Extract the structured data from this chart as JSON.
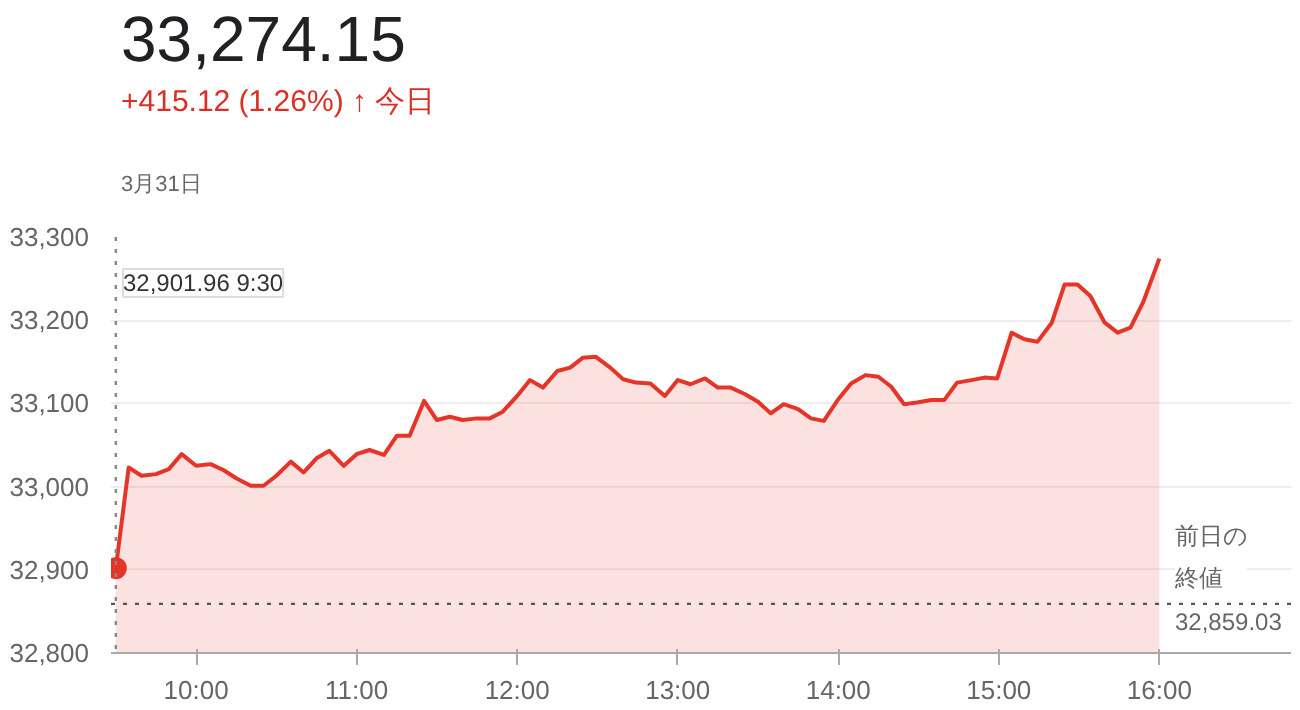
{
  "chart_data": {
    "type": "area",
    "title": "33,274.15",
    "subtitle": "+415.12 (1.26%) ↑ 今日",
    "annotations": [
      "3月31日",
      "32,901.96 9:30",
      "32,859.03"
    ],
    "x": [
      9.5,
      9.58,
      9.66,
      9.75,
      9.83,
      9.91,
      10.0,
      10.09,
      10.17,
      10.25,
      10.34,
      10.42,
      10.5,
      10.59,
      10.67,
      10.75,
      10.83,
      10.92,
      11.0,
      11.08,
      11.17,
      11.25,
      11.33,
      11.42,
      11.5,
      11.58,
      11.66,
      11.75,
      11.83,
      11.91,
      12.0,
      12.08,
      12.16,
      12.25,
      12.33,
      12.41,
      12.49,
      12.58,
      12.66,
      12.74,
      12.83,
      12.92,
      13.0,
      13.08,
      13.17,
      13.25,
      13.33,
      13.42,
      13.5,
      13.58,
      13.66,
      13.75,
      13.83,
      13.91,
      14.0,
      14.08,
      14.17,
      14.25,
      14.33,
      14.41,
      14.49,
      14.58,
      14.66,
      14.74,
      14.83,
      14.91,
      14.99,
      15.08,
      15.16,
      15.24,
      15.33,
      15.41,
      15.49,
      15.57,
      15.66,
      15.74,
      15.82,
      15.9,
      16.0
    ],
    "series": [
      {
        "color": "#e53528",
        "values": [
          32902,
          33023,
          33013,
          33015,
          33021,
          33039,
          33025,
          33027,
          33020,
          33010,
          33001,
          33001,
          33013,
          33030,
          33017,
          33034,
          33043,
          33025,
          33039,
          33044,
          33038,
          33061,
          33061,
          33103,
          33080,
          33084,
          33080,
          33082,
          33082,
          33090,
          33109,
          33128,
          33119,
          33139,
          33143,
          33155,
          33156,
          33143,
          33129,
          33125,
          33124,
          33109,
          33128,
          33123,
          33130,
          33119,
          33119,
          33111,
          33102,
          33088,
          33099,
          33093,
          33082,
          33079,
          33105,
          33124,
          33134,
          33132,
          33120,
          33099,
          33101,
          33104,
          33104,
          33125,
          33128,
          33131,
          33130,
          33185,
          33177,
          33174,
          33197,
          33243,
          33243,
          33229,
          33197,
          33185,
          33191,
          33222,
          33274
        ]
      }
    ],
    "xlim": [
      9.47,
      16.82
    ],
    "ylim": [
      32800,
      33300
    ],
    "xticks": [
      {
        "value": 10,
        "label": "10:00"
      },
      {
        "value": 11,
        "label": "11:00"
      },
      {
        "value": 12,
        "label": "12:00"
      },
      {
        "value": 13,
        "label": "13:00"
      },
      {
        "value": 14,
        "label": "14:00"
      },
      {
        "value": 15,
        "label": "15:00"
      },
      {
        "value": 16,
        "label": "16:00"
      }
    ],
    "yticks": [
      {
        "value": 32800,
        "label": "32,800"
      },
      {
        "value": 32900,
        "label": "32,900"
      },
      {
        "value": 33000,
        "label": "33,000"
      },
      {
        "value": 33100,
        "label": "33,100"
      },
      {
        "value": 33200,
        "label": "33,200"
      },
      {
        "value": 33300,
        "label": "33,300"
      }
    ],
    "ref_lines": [
      {
        "axis": "y",
        "value": 32859.03,
        "label": "前日の終値",
        "color": "#555555",
        "line_style": "dotted"
      },
      {
        "axis": "x",
        "value": 9.5,
        "label": null,
        "color": "#888888",
        "line_style": "dotted"
      }
    ],
    "grid": "y",
    "line_style": "solid"
  }
}
